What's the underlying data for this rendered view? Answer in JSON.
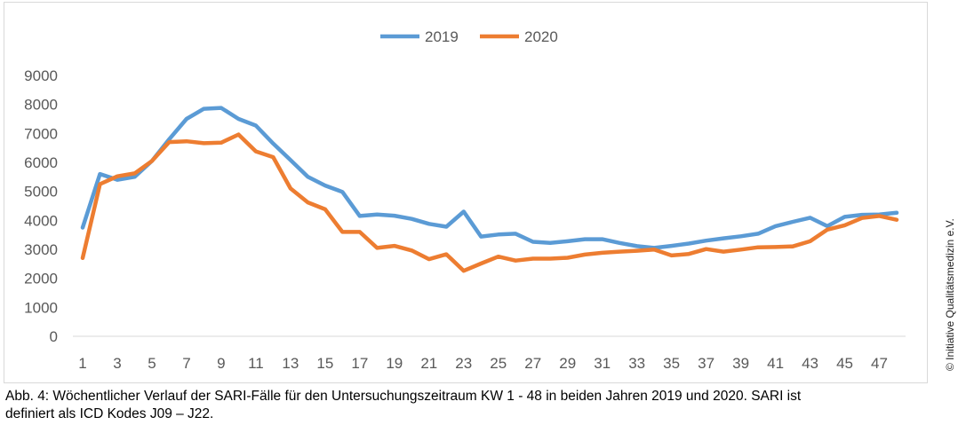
{
  "chart_data": {
    "type": "line",
    "title": "",
    "xlabel": "",
    "ylabel": "",
    "ylim": [
      0,
      9000
    ],
    "yticks": [
      0,
      1000,
      2000,
      3000,
      4000,
      5000,
      6000,
      7000,
      8000,
      9000
    ],
    "x": [
      1,
      2,
      3,
      4,
      5,
      6,
      7,
      8,
      9,
      10,
      11,
      12,
      13,
      14,
      15,
      16,
      17,
      18,
      19,
      20,
      21,
      22,
      23,
      24,
      25,
      26,
      27,
      28,
      29,
      30,
      31,
      32,
      33,
      34,
      35,
      36,
      37,
      38,
      39,
      40,
      41,
      42,
      43,
      44,
      45,
      46,
      47,
      48
    ],
    "xtick_labels": [
      "1",
      "3",
      "5",
      "7",
      "9",
      "11",
      "13",
      "15",
      "17",
      "19",
      "21",
      "23",
      "25",
      "27",
      "29",
      "31",
      "33",
      "35",
      "37",
      "39",
      "41",
      "43",
      "45",
      "47"
    ],
    "legend_position": "top",
    "grid": false,
    "series": [
      {
        "name": "2019",
        "color": "#5b9bd5",
        "values": [
          3750,
          5600,
          5400,
          5500,
          6050,
          6800,
          7500,
          7850,
          7880,
          7500,
          7270,
          6650,
          6080,
          5500,
          5200,
          4980,
          4150,
          4200,
          4160,
          4050,
          3880,
          3780,
          4300,
          3440,
          3510,
          3540,
          3260,
          3220,
          3280,
          3350,
          3350,
          3220,
          3110,
          3050,
          3120,
          3200,
          3300,
          3380,
          3450,
          3540,
          3800,
          3950,
          4090,
          3800,
          4120,
          4190,
          4200,
          4260
        ]
      },
      {
        "name": "2020",
        "color": "#ed7d31",
        "values": [
          2700,
          5250,
          5520,
          5620,
          6050,
          6700,
          6730,
          6660,
          6680,
          6960,
          6380,
          6180,
          5100,
          4620,
          4380,
          3600,
          3600,
          3050,
          3120,
          2960,
          2660,
          2830,
          2260,
          2510,
          2750,
          2610,
          2680,
          2680,
          2710,
          2820,
          2880,
          2920,
          2950,
          2990,
          2790,
          2840,
          3010,
          2920,
          2990,
          3070,
          3080,
          3100,
          3280,
          3680,
          3830,
          4080,
          4150,
          4020
        ]
      }
    ]
  },
  "caption": {
    "line1": "Abb. 4: Wöchentlicher Verlauf der SARI-Fälle für den Untersuchungszeitraum KW 1 - 48 in beiden Jahren 2019 und 2020. SARI ist",
    "line2": "definiert als ICD Kodes J09 – J22."
  },
  "copyright": "© Initiative Qualitätsmedizin e.V."
}
